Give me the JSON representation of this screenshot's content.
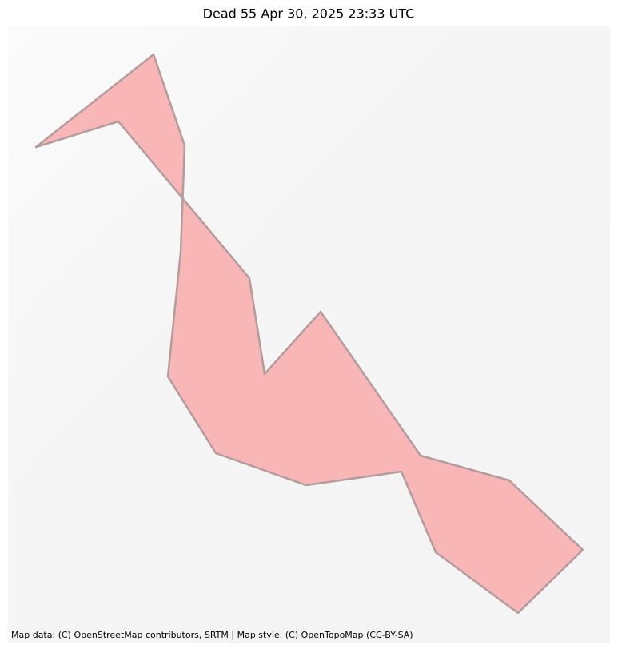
{
  "title": "Dead 55 Apr 30, 2025 23:33 UTC",
  "attribution": "Map data: (C) OpenStreetMap contributors, SRTM | Map style: (C) OpenTopoMap (CC-BY-SA)"
}
